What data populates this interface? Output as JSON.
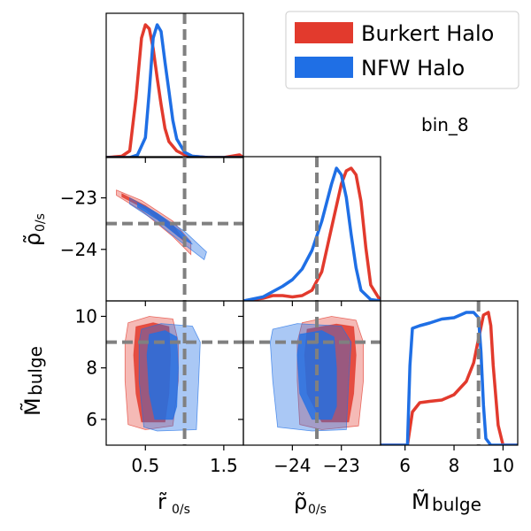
{
  "chart_data": {
    "type": "corner",
    "annotation": "bin_8",
    "legend": {
      "placement": "top-right",
      "entries": [
        {
          "name": "Burkert Halo",
          "color": "#e23a2d"
        },
        {
          "name": "NFW Halo",
          "color": "#1f6fe5"
        }
      ]
    },
    "colors": {
      "burkert": "#e23a2d",
      "nfw": "#1f6fe5",
      "truth": "#808080",
      "frame": "#000000"
    },
    "parameters": [
      {
        "key": "r",
        "label_main": "r̃",
        "label_sub": "0/s",
        "range": [
          0.0,
          1.75
        ],
        "ticks": [
          0.5,
          1.5
        ],
        "tick_labels": [
          "0.5",
          "1.5"
        ],
        "truth": 1.0
      },
      {
        "key": "rho",
        "label_main": "ρ̃",
        "label_sub": "0/s",
        "range": [
          -25.0,
          -22.2
        ],
        "ticks": [
          -24,
          -23
        ],
        "tick_labels": [
          "−24",
          "−23"
        ],
        "truth": -23.5
      },
      {
        "key": "m",
        "label_main": "M̃",
        "label_sub": "bulge",
        "range": [
          5.0,
          10.6
        ],
        "ticks": [
          6,
          8,
          10
        ],
        "tick_labels": [
          "6",
          "8",
          "10"
        ],
        "truth": 9.0
      }
    ],
    "marginals": {
      "r": {
        "burkert": {
          "x": [
            0.0,
            0.2,
            0.3,
            0.38,
            0.45,
            0.5,
            0.55,
            0.6,
            0.65,
            0.7,
            0.75,
            0.8,
            0.9,
            1.0,
            1.1,
            1.3,
            1.5,
            1.7,
            1.75
          ],
          "y": [
            0.0,
            0.01,
            0.05,
            0.45,
            0.9,
            1.0,
            0.97,
            0.82,
            0.6,
            0.4,
            0.22,
            0.12,
            0.05,
            0.02,
            0.01,
            0.0,
            0.0,
            0.02,
            0.0
          ]
        },
        "nfw": {
          "x": [
            0.0,
            0.3,
            0.4,
            0.5,
            0.55,
            0.6,
            0.65,
            0.7,
            0.75,
            0.8,
            0.85,
            0.9,
            1.0,
            1.1,
            1.3,
            1.5,
            1.75
          ],
          "y": [
            0.0,
            0.0,
            0.02,
            0.15,
            0.5,
            0.9,
            1.0,
            0.95,
            0.72,
            0.5,
            0.28,
            0.14,
            0.04,
            0.01,
            0.0,
            0.0,
            0.0
          ]
        }
      },
      "rho": {
        "burkert": {
          "x": [
            -25.0,
            -24.6,
            -24.4,
            -24.2,
            -24.0,
            -23.8,
            -23.6,
            -23.4,
            -23.2,
            -23.0,
            -22.9,
            -22.8,
            -22.7,
            -22.6,
            -22.5,
            -22.4,
            -22.2
          ],
          "y": [
            0.0,
            0.02,
            0.04,
            0.04,
            0.03,
            0.04,
            0.08,
            0.22,
            0.55,
            0.88,
            0.98,
            1.0,
            0.95,
            0.75,
            0.4,
            0.12,
            0.0
          ]
        },
        "nfw": {
          "x": [
            -25.0,
            -24.6,
            -24.4,
            -24.2,
            -24.0,
            -23.8,
            -23.6,
            -23.4,
            -23.2,
            -23.1,
            -23.0,
            -22.9,
            -22.8,
            -22.7,
            -22.6,
            -22.4,
            -22.2
          ],
          "y": [
            0.0,
            0.03,
            0.07,
            0.11,
            0.16,
            0.24,
            0.38,
            0.6,
            0.88,
            1.0,
            0.95,
            0.78,
            0.5,
            0.25,
            0.08,
            0.01,
            0.0
          ]
        }
      },
      "m": {
        "burkert": {
          "x": [
            5.0,
            6.1,
            6.3,
            6.6,
            7.0,
            7.5,
            8.0,
            8.5,
            8.8,
            9.0,
            9.2,
            9.4,
            9.5,
            9.6,
            9.8,
            10.0,
            10.6
          ],
          "y": [
            0.0,
            0.0,
            0.25,
            0.32,
            0.33,
            0.34,
            0.38,
            0.48,
            0.62,
            0.8,
            0.98,
            1.0,
            0.9,
            0.6,
            0.15,
            0.0,
            0.0
          ]
        },
        "nfw": {
          "x": [
            5.0,
            6.1,
            6.2,
            6.3,
            6.6,
            7.0,
            7.5,
            8.0,
            8.5,
            8.8,
            9.0,
            9.1,
            9.2,
            9.3,
            9.5,
            10.6
          ],
          "y": [
            0.0,
            0.0,
            0.6,
            0.88,
            0.9,
            0.92,
            0.95,
            0.96,
            1.0,
            1.0,
            0.96,
            0.7,
            0.3,
            0.05,
            0.0,
            0.0
          ]
        }
      }
    },
    "contours_2d": [
      {
        "x_param": "r",
        "y_param": "rho",
        "burkert": [
          {
            "level": "outer",
            "points": [
              [
                0.13,
                -22.85
              ],
              [
                0.45,
                -23.05
              ],
              [
                0.85,
                -23.45
              ],
              [
                1.08,
                -23.85
              ],
              [
                1.08,
                -24.1
              ],
              [
                0.85,
                -23.75
              ],
              [
                0.45,
                -23.25
              ],
              [
                0.13,
                -22.95
              ]
            ]
          },
          {
            "level": "inner",
            "points": [
              [
                0.2,
                -22.92
              ],
              [
                0.5,
                -23.15
              ],
              [
                0.85,
                -23.52
              ],
              [
                1.0,
                -23.85
              ],
              [
                0.85,
                -23.65
              ],
              [
                0.5,
                -23.22
              ],
              [
                0.2,
                -22.98
              ]
            ]
          }
        ],
        "nfw": [
          {
            "level": "outer",
            "points": [
              [
                0.3,
                -23.0
              ],
              [
                0.6,
                -23.25
              ],
              [
                1.0,
                -23.65
              ],
              [
                1.28,
                -24.05
              ],
              [
                1.25,
                -24.2
              ],
              [
                0.95,
                -23.85
              ],
              [
                0.6,
                -23.42
              ],
              [
                0.3,
                -23.12
              ]
            ]
          },
          {
            "level": "inner",
            "points": [
              [
                0.4,
                -23.1
              ],
              [
                0.65,
                -23.3
              ],
              [
                0.95,
                -23.65
              ],
              [
                1.1,
                -23.9
              ],
              [
                0.92,
                -23.75
              ],
              [
                0.65,
                -23.42
              ],
              [
                0.4,
                -23.18
              ]
            ]
          }
        ]
      },
      {
        "x_param": "r",
        "y_param": "m",
        "burkert": [
          {
            "level": "outer",
            "points": [
              [
                0.28,
                9.75
              ],
              [
                0.55,
                10.0
              ],
              [
                0.85,
                9.9
              ],
              [
                0.92,
                9.0
              ],
              [
                0.92,
                7.5
              ],
              [
                0.85,
                5.75
              ],
              [
                0.5,
                5.6
              ],
              [
                0.28,
                5.8
              ],
              [
                0.24,
                7.5
              ],
              [
                0.24,
                9.0
              ]
            ]
          },
          {
            "level": "inner",
            "points": [
              [
                0.38,
                9.6
              ],
              [
                0.6,
                9.75
              ],
              [
                0.8,
                9.6
              ],
              [
                0.82,
                8.5
              ],
              [
                0.8,
                7.0
              ],
              [
                0.75,
                5.9
              ],
              [
                0.45,
                5.9
              ],
              [
                0.38,
                7.0
              ],
              [
                0.35,
                8.5
              ]
            ]
          }
        ],
        "nfw": [
          {
            "level": "outer",
            "points": [
              [
                0.45,
                9.5
              ],
              [
                0.7,
                9.72
              ],
              [
                1.1,
                9.62
              ],
              [
                1.2,
                9.0
              ],
              [
                1.18,
                7.5
              ],
              [
                1.15,
                5.6
              ],
              [
                0.65,
                5.55
              ],
              [
                0.48,
                5.7
              ],
              [
                0.42,
                7.5
              ],
              [
                0.42,
                9.0
              ]
            ]
          },
          {
            "level": "inner",
            "points": [
              [
                0.55,
                9.3
              ],
              [
                0.75,
                9.45
              ],
              [
                0.9,
                9.2
              ],
              [
                0.92,
                8.0
              ],
              [
                0.9,
                6.5
              ],
              [
                0.85,
                6.0
              ],
              [
                0.62,
                6.0
              ],
              [
                0.55,
                7.0
              ],
              [
                0.52,
                8.5
              ]
            ]
          }
        ]
      },
      {
        "x_param": "rho",
        "y_param": "m",
        "burkert": [
          {
            "level": "outer",
            "points": [
              [
                -23.8,
                9.75
              ],
              [
                -23.2,
                10.0
              ],
              [
                -22.7,
                9.85
              ],
              [
                -22.55,
                9.0
              ],
              [
                -22.55,
                7.5
              ],
              [
                -22.65,
                5.75
              ],
              [
                -23.4,
                5.6
              ],
              [
                -23.85,
                5.8
              ],
              [
                -23.9,
                7.5
              ],
              [
                -23.9,
                9.0
              ]
            ]
          },
          {
            "level": "inner",
            "points": [
              [
                -23.7,
                9.5
              ],
              [
                -23.1,
                9.7
              ],
              [
                -22.75,
                9.6
              ],
              [
                -22.7,
                8.5
              ],
              [
                -22.75,
                7.0
              ],
              [
                -22.85,
                5.9
              ],
              [
                -23.4,
                5.9
              ],
              [
                -23.7,
                7.0
              ],
              [
                -23.75,
                8.5
              ]
            ]
          }
        ],
        "nfw": [
          {
            "level": "outer",
            "points": [
              [
                -24.4,
                9.5
              ],
              [
                -23.9,
                9.72
              ],
              [
                -23.0,
                9.62
              ],
              [
                -22.8,
                9.0
              ],
              [
                -22.85,
                7.5
              ],
              [
                -22.9,
                5.6
              ],
              [
                -23.6,
                5.55
              ],
              [
                -24.3,
                5.7
              ],
              [
                -24.4,
                7.5
              ],
              [
                -24.45,
                9.0
              ]
            ]
          },
          {
            "level": "inner",
            "points": [
              [
                -23.85,
                9.3
              ],
              [
                -23.4,
                9.45
              ],
              [
                -23.15,
                9.2
              ],
              [
                -23.1,
                8.0
              ],
              [
                -23.1,
                6.5
              ],
              [
                -23.2,
                6.0
              ],
              [
                -23.6,
                6.0
              ],
              [
                -23.85,
                7.0
              ],
              [
                -23.9,
                8.5
              ]
            ]
          }
        ]
      }
    ]
  }
}
